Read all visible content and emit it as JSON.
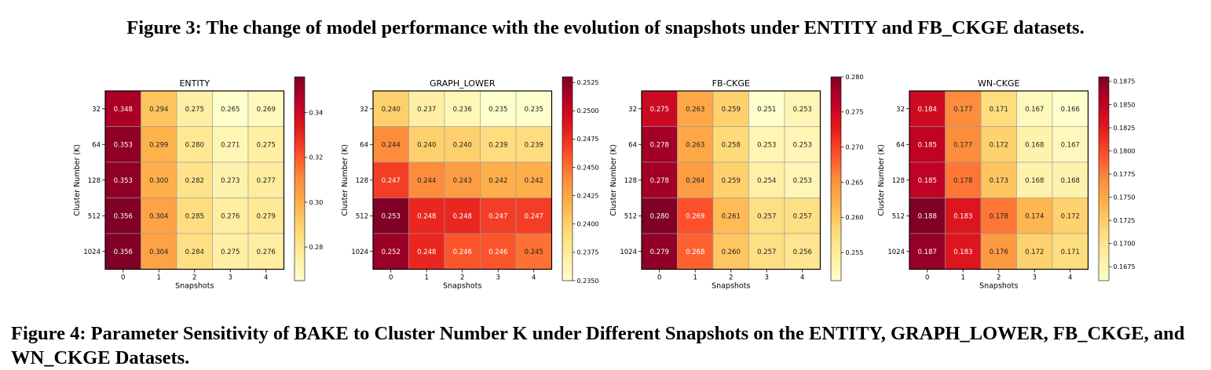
{
  "captions": {
    "top": "Figure 3: The change of model performance with the evolution of snapshots under ENTITY and FB_CKGE datasets.",
    "bottom": "Figure 4: Parameter Sensitivity of BAKE to Cluster Number K under Different Snapshots on the ENTITY, GRAPH_LOWER, FB_CKGE, and WN_CKGE Datasets."
  },
  "chart_data": [
    {
      "type": "heatmap",
      "title": "ENTITY",
      "xlabel": "Snapshots",
      "ylabel": "Cluster Number (K)",
      "x": [
        "0",
        "1",
        "2",
        "3",
        "4"
      ],
      "y": [
        "32",
        "64",
        "128",
        "512",
        "1024"
      ],
      "values": [
        [
          0.348,
          0.294,
          0.275,
          0.265,
          0.269
        ],
        [
          0.353,
          0.299,
          0.28,
          0.271,
          0.275
        ],
        [
          0.353,
          0.3,
          0.282,
          0.273,
          0.277
        ],
        [
          0.356,
          0.304,
          0.285,
          0.276,
          0.279
        ],
        [
          0.356,
          0.304,
          0.284,
          0.275,
          0.276
        ]
      ],
      "colorbar_range": [
        0.265,
        0.356
      ],
      "colorbar_ticks": [
        "0.28",
        "0.30",
        "0.32",
        "0.34"
      ],
      "colormap": "YlOrRd"
    },
    {
      "type": "heatmap",
      "title": "GRAPH_LOWER",
      "xlabel": "Snapshots",
      "ylabel": "Cluster Number (K)",
      "x": [
        "0",
        "1",
        "2",
        "3",
        "4"
      ],
      "y": [
        "32",
        "64",
        "128",
        "512",
        "1024"
      ],
      "values": [
        [
          0.24,
          0.237,
          0.236,
          0.235,
          0.235
        ],
        [
          0.244,
          0.24,
          0.24,
          0.239,
          0.239
        ],
        [
          0.247,
          0.244,
          0.243,
          0.242,
          0.242
        ],
        [
          0.253,
          0.248,
          0.248,
          0.247,
          0.247
        ],
        [
          0.252,
          0.248,
          0.246,
          0.246,
          0.245
        ]
      ],
      "colorbar_range": [
        0.235,
        0.253
      ],
      "colorbar_ticks": [
        "0.2350",
        "0.2375",
        "0.2400",
        "0.2425",
        "0.2450",
        "0.2475",
        "0.2500",
        "0.2525"
      ],
      "colormap": "YlOrRd"
    },
    {
      "type": "heatmap",
      "title": "FB-CKGE",
      "xlabel": "Snapshots",
      "ylabel": "Cluster Number (K)",
      "x": [
        "0",
        "1",
        "2",
        "3",
        "4"
      ],
      "y": [
        "32",
        "64",
        "128",
        "512",
        "1024"
      ],
      "values": [
        [
          0.275,
          0.263,
          0.259,
          0.251,
          0.253
        ],
        [
          0.278,
          0.263,
          0.258,
          0.253,
          0.253
        ],
        [
          0.278,
          0.264,
          0.259,
          0.254,
          0.253
        ],
        [
          0.28,
          0.269,
          0.261,
          0.257,
          0.257
        ],
        [
          0.279,
          0.268,
          0.26,
          0.257,
          0.256
        ]
      ],
      "colorbar_range": [
        0.251,
        0.28
      ],
      "colorbar_ticks": [
        "0.255",
        "0.260",
        "0.265",
        "0.270",
        "0.275",
        "0.280"
      ],
      "colormap": "YlOrRd"
    },
    {
      "type": "heatmap",
      "title": "WN-CKGE",
      "xlabel": "Snapshots",
      "ylabel": "Cluster Number (K)",
      "x": [
        "0",
        "1",
        "2",
        "3",
        "4"
      ],
      "y": [
        "32",
        "64",
        "128",
        "512",
        "1024"
      ],
      "values": [
        [
          0.184,
          0.177,
          0.171,
          0.167,
          0.166
        ],
        [
          0.185,
          0.177,
          0.172,
          0.168,
          0.167
        ],
        [
          0.185,
          0.178,
          0.173,
          0.168,
          0.168
        ],
        [
          0.188,
          0.183,
          0.178,
          0.174,
          0.172
        ],
        [
          0.187,
          0.183,
          0.176,
          0.172,
          0.171
        ]
      ],
      "colorbar_range": [
        0.166,
        0.188
      ],
      "colorbar_ticks": [
        "0.1675",
        "0.1700",
        "0.1725",
        "0.1750",
        "0.1775",
        "0.1800",
        "0.1825",
        "0.1850",
        "0.1875"
      ],
      "colormap": "YlOrRd"
    }
  ]
}
